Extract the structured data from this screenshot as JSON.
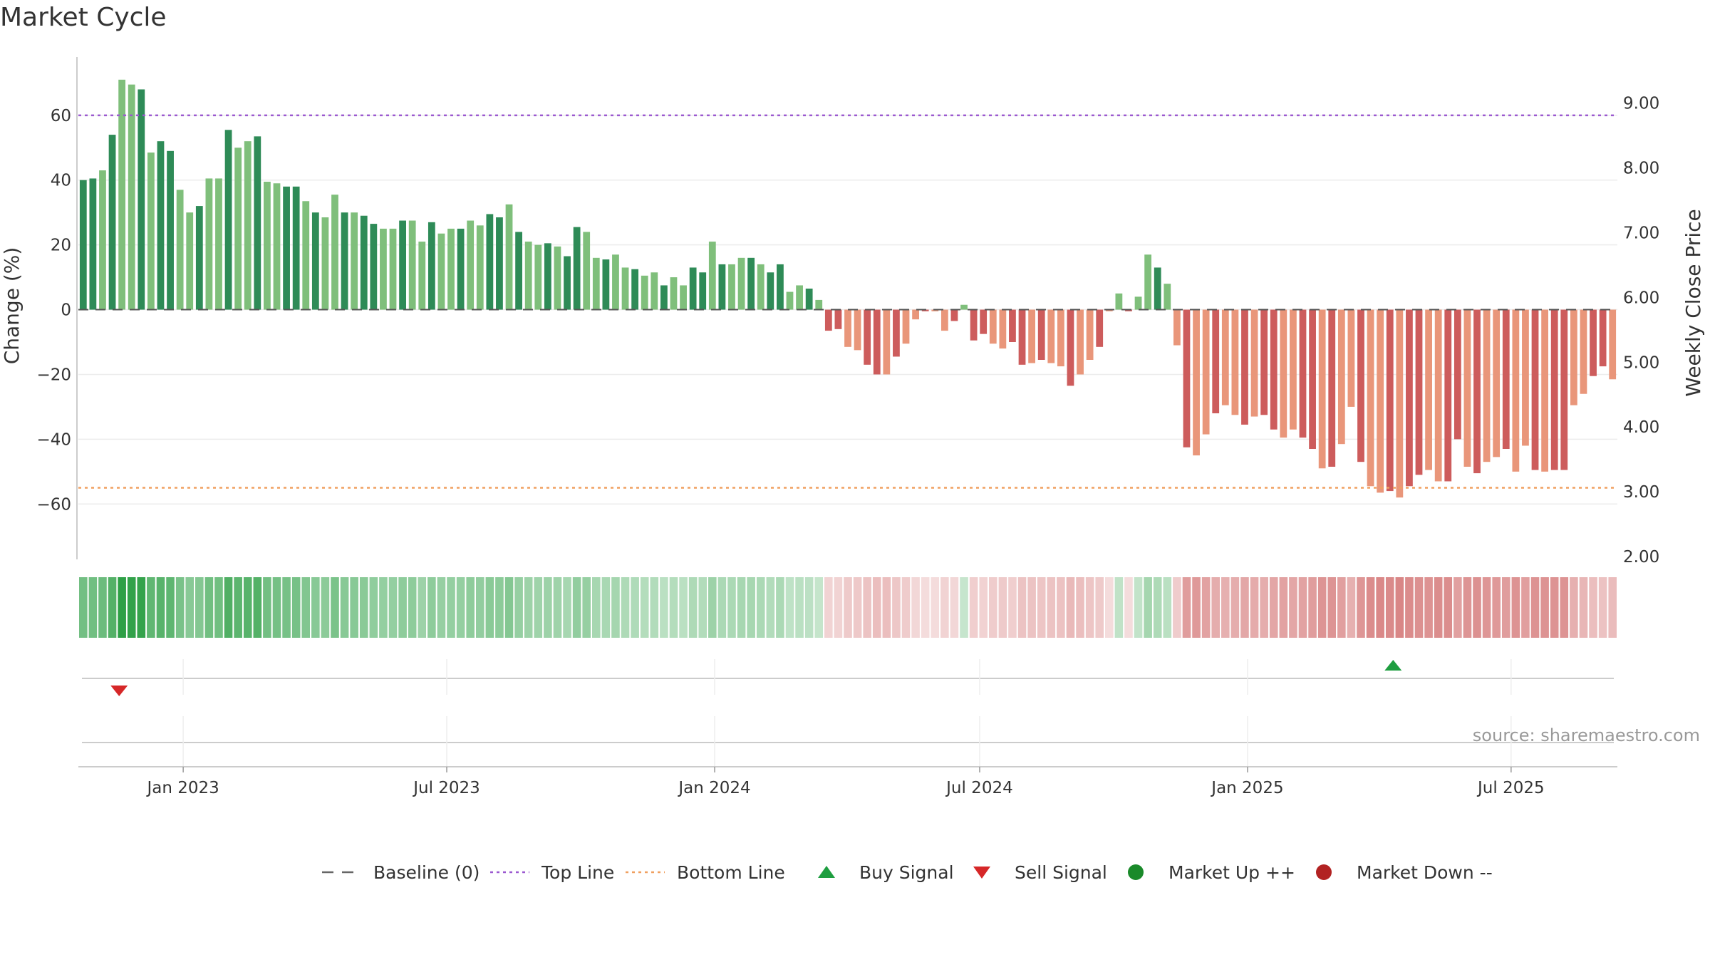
{
  "chart_data": {
    "type": "bar",
    "title": "Market Cycle",
    "ylabel_left": "Change (%)",
    "ylabel_right": "Weekly Close Price",
    "ylim_left": [
      -76,
      78
    ],
    "ylim_right": [
      2.0,
      9.7
    ],
    "yticks_left": [
      60,
      40,
      20,
      0,
      -20,
      -40,
      -60
    ],
    "yticks_left_labels": [
      "60",
      "40",
      "20",
      "0",
      "−20",
      "−40",
      "−60"
    ],
    "yticks_right": [
      9.0,
      8.0,
      7.0,
      6.0,
      5.0,
      4.0,
      3.0,
      2.0
    ],
    "yticks_right_labels": [
      "9.00",
      "8.00",
      "7.00",
      "6.00",
      "5.00",
      "4.00",
      "3.00",
      "2.00"
    ],
    "x_start": "2022-10-21",
    "x_end": "2025-09-12",
    "x_tick_dates": [
      "2023-01-01",
      "2023-07-01",
      "2024-01-01",
      "2024-07-01",
      "2025-01-01",
      "2025-07-01"
    ],
    "x_tick_labels": [
      "Jan 2023",
      "Jul 2023",
      "Jan 2024",
      "Jul 2024",
      "Jan 2025",
      "Jul 2025"
    ],
    "top_line": 60,
    "bottom_line": -55,
    "baseline": 0,
    "weekly_change": [
      40,
      40.5,
      43,
      54,
      71,
      69.5,
      68,
      48.5,
      52,
      49,
      37,
      30,
      32,
      40.5,
      40.5,
      55.5,
      50,
      52,
      53.5,
      39.5,
      39,
      38,
      38,
      33.5,
      30,
      28.5,
      35.5,
      30,
      30,
      29,
      26.5,
      25,
      25,
      27.5,
      27.5,
      21,
      27,
      23.5,
      25,
      25,
      27.5,
      26,
      29.5,
      28.5,
      32.5,
      24,
      21,
      20,
      20.5,
      19.5,
      16.5,
      25.5,
      24,
      16,
      15.5,
      17,
      13,
      12.5,
      10.5,
      11.5,
      7.5,
      10,
      7.5,
      13,
      11.5,
      21,
      14,
      14,
      16,
      16,
      14,
      11.5,
      14,
      5.5,
      7.5,
      6.5,
      3,
      -6.5,
      -6,
      -11.5,
      -12.5,
      -17,
      -20,
      -20,
      -14.5,
      -10.5,
      -3,
      -0.5,
      -0.5,
      -6.5,
      -3.5,
      1.5,
      -9.5,
      -7.5,
      -10.5,
      -12,
      -10,
      -17,
      -16.5,
      -15.5,
      -16.5,
      -17.5,
      -23.5,
      -20,
      -15.5,
      -11.5,
      -0.5,
      5,
      -0.5,
      4,
      17,
      13,
      8,
      -11,
      -42.5,
      -45,
      -38.5,
      -32,
      -29.5,
      -32.5,
      -35.5,
      -33,
      -32.5,
      -37,
      -39.5,
      -37,
      -39.5,
      -43,
      -49,
      -48.5,
      -41.5,
      -30,
      -47,
      -54.5,
      -56.5,
      -56,
      -58,
      -54.5,
      -51,
      -49.5,
      -53,
      -53,
      -40,
      -48.5,
      -50.5,
      -47,
      -45.5,
      -43,
      -50,
      -42,
      -49.5,
      -50,
      -49.5,
      -49.5,
      -29.5,
      -26,
      -20.5,
      -17.5,
      -21.5
    ],
    "buy_signals": [
      "2025-04-11"
    ],
    "sell_signals": [
      "2022-11-18"
    ],
    "legend": [
      {
        "name": "Baseline (0)",
        "symbol": "dash",
        "color": "#666666"
      },
      {
        "name": "Top Line",
        "symbol": "dotted",
        "color": "#9b59d0"
      },
      {
        "name": "Bottom Line",
        "symbol": "dotted",
        "color": "#f0a060"
      },
      {
        "name": "Buy Signal",
        "symbol": "triangle-up",
        "color": "#1e9e40"
      },
      {
        "name": "Sell Signal",
        "symbol": "triangle-down",
        "color": "#d62728"
      },
      {
        "name": "Market Up ++",
        "symbol": "circle",
        "color": "#1a8a2a"
      },
      {
        "name": "Market Down --",
        "symbol": "circle",
        "color": "#b22222"
      }
    ],
    "colors": {
      "pos_dark": "#2e8b57",
      "pos_light": "#7fbf7b",
      "neg_dark": "#cd5c5c",
      "neg_light": "#e9967a",
      "top_line": "#9b59d0",
      "bottom_line": "#f0a060"
    }
  },
  "source_text": "source: sharemaestro.com"
}
